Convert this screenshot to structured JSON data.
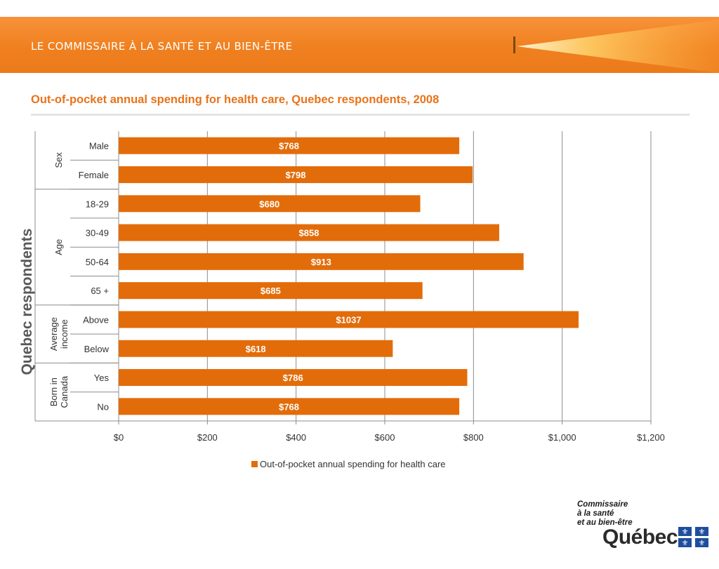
{
  "header": {
    "org_title": "LE COMMISSAIRE À LA SANTÉ ET AU BIEN-ÊTRE",
    "brand_color": "#f0801f"
  },
  "logo": {
    "line1": "Commissaire",
    "line2": "à la santé",
    "line3": "et au bien-être",
    "wordmark": "Québec",
    "flag_color": "#1f4e9e"
  },
  "chart_data": {
    "type": "bar",
    "orientation": "horizontal",
    "title": "Out-of-pocket  annual spending for health care, Quebec respondents, 2008",
    "ylabel": "Quebec respondents",
    "xlabel": "",
    "xlim": [
      0,
      1200
    ],
    "x_ticks": [
      0,
      200,
      400,
      600,
      800,
      1000,
      1200
    ],
    "x_tick_labels": [
      "$0",
      "$200",
      "$400",
      "$600",
      "$800",
      "$1,000",
      "$1,200"
    ],
    "grid": "vertical",
    "legend_position": "bottom",
    "bar_color": "#e36c0a",
    "groups": [
      {
        "label": "Sex",
        "categories": [
          "Male",
          "Female"
        ]
      },
      {
        "label": "Age",
        "categories": [
          "18-29",
          "30-49",
          "50-64",
          "65 +"
        ]
      },
      {
        "label": "Average income",
        "categories": [
          "Above",
          "Below"
        ]
      },
      {
        "label": "Born in Canada",
        "categories": [
          "Yes",
          "No"
        ]
      }
    ],
    "categories": [
      "Male",
      "Female",
      "18-29",
      "30-49",
      "50-64",
      "65 +",
      "Above",
      "Below",
      "Yes",
      "No"
    ],
    "series": [
      {
        "name": "Out-of-pocket  annual spending for health care",
        "values": [
          768,
          798,
          680,
          858,
          913,
          685,
          1037,
          618,
          786,
          768
        ],
        "data_labels": [
          "$768",
          "$798",
          "$680",
          "$858",
          "$913",
          "$685",
          "$1037",
          "$618",
          "$786",
          "$768"
        ]
      }
    ]
  }
}
